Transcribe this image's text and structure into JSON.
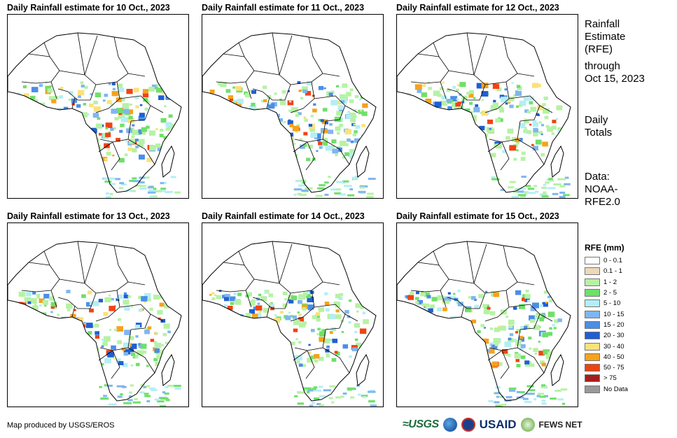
{
  "panels": [
    {
      "title": "Daily Rainfall estimate for 10 Oct., 2023"
    },
    {
      "title": "Daily Rainfall estimate for 11 Oct., 2023"
    },
    {
      "title": "Daily Rainfall estimate for 12 Oct., 2023"
    },
    {
      "title": "Daily Rainfall estimate for 13 Oct., 2023"
    },
    {
      "title": "Daily Rainfall estimate for 14 Oct., 2023"
    },
    {
      "title": "Daily Rainfall estimate for 15 Oct., 2023"
    }
  ],
  "side": {
    "title1": "Rainfall",
    "title2": "Estimate",
    "title3": "(RFE)",
    "through": "through",
    "date": "Oct 15, 2023",
    "daily1": "Daily",
    "daily2": "Totals",
    "data1": "Data:",
    "data2": "NOAA-",
    "data3": "RFE2.0"
  },
  "legend": {
    "title": "RFE (mm)",
    "items": [
      {
        "label": "0 - 0.1",
        "color": "#ffffff"
      },
      {
        "label": "0.1 - 1",
        "color": "#ecd9b9"
      },
      {
        "label": "1 - 2",
        "color": "#b6f2a5"
      },
      {
        "label": "2 - 5",
        "color": "#6fe06a"
      },
      {
        "label": "5 - 10",
        "color": "#b4eef5"
      },
      {
        "label": "10 - 15",
        "color": "#7fb6ef"
      },
      {
        "label": "15 - 20",
        "color": "#4b8ee6"
      },
      {
        "label": "20 - 30",
        "color": "#1f5fd4"
      },
      {
        "label": "30 - 40",
        "color": "#fbe17a"
      },
      {
        "label": "40 - 50",
        "color": "#f5a21c"
      },
      {
        "label": "50 - 75",
        "color": "#f04313"
      },
      {
        "label": "> 75",
        "color": "#a71d1d"
      },
      {
        "label": "No Data",
        "color": "#999999"
      }
    ]
  },
  "credit": "Map produced by USGS/EROS",
  "logos": {
    "usgs": "≈USGS",
    "usaid": "USAID",
    "fews": "FEWS NET"
  }
}
